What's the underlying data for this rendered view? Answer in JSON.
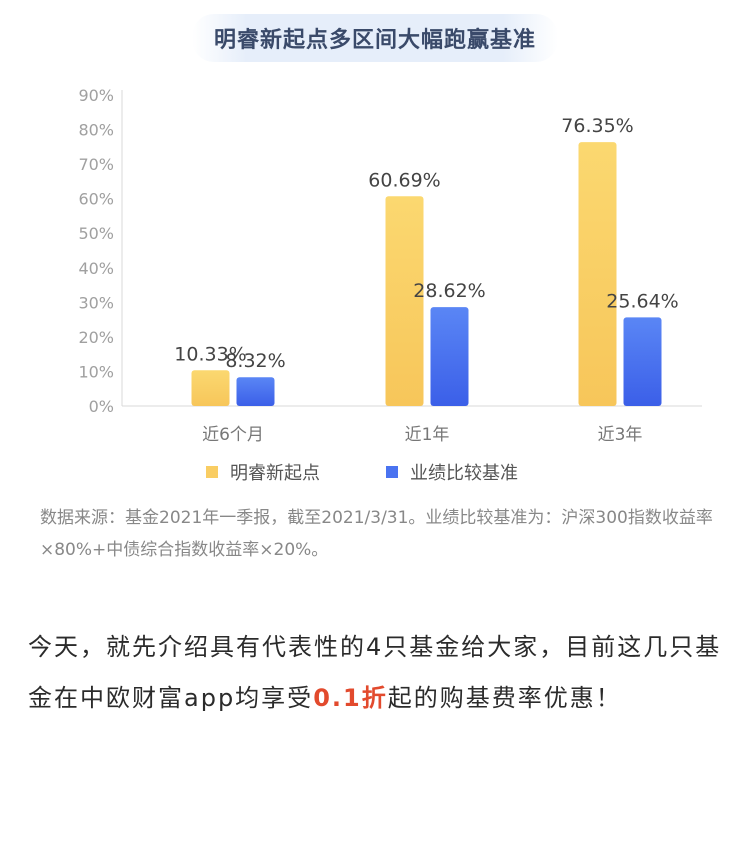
{
  "chart_data": {
    "type": "bar",
    "title": "明睿新起点多区间大幅跑赢基准",
    "categories": [
      "近6个月",
      "近1年",
      "近3年"
    ],
    "series": [
      {
        "name": "明睿新起点",
        "values": [
          10.33,
          60.69,
          76.35
        ],
        "labels": [
          "10.33%",
          "60.69%",
          "76.35%"
        ],
        "color": "#f9cd63"
      },
      {
        "name": "业绩比较基准",
        "values": [
          8.32,
          28.62,
          25.64
        ],
        "labels": [
          "8.32%",
          "28.62%",
          "25.64%"
        ],
        "color": "#4a73f0"
      }
    ],
    "y_ticks": [
      "0%",
      "10%",
      "20%",
      "30%",
      "40%",
      "50%",
      "60%",
      "70%",
      "80%",
      "90%"
    ],
    "ylim": [
      0,
      90
    ],
    "grid": false,
    "legend_position": "bottom"
  },
  "source_note": "数据来源：基金2021年一季报，截至2021/3/31。业绩比较基准为：沪深300指数收益率×80%+中债综合指数收益率×20%。",
  "body": {
    "part1": "今天，就先介绍具有代表性的4只基金给大家，目前这几只基金在中欧财富app均享受",
    "highlight": "0.1折",
    "part2": "起的购基费率优惠！"
  }
}
